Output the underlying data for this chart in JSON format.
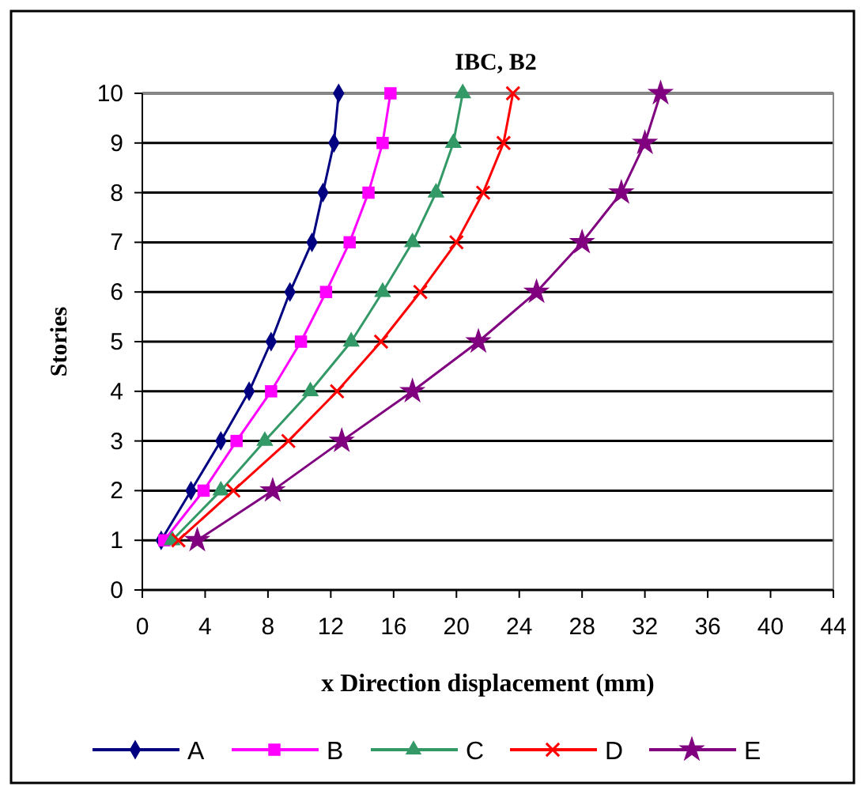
{
  "chart_data": {
    "type": "line",
    "title": "IBC, B2",
    "xlabel": "x Direction displacement (mm)",
    "ylabel": "Stories",
    "xlim": [
      0,
      44
    ],
    "xticks": [
      0,
      4,
      8,
      12,
      16,
      20,
      24,
      28,
      32,
      36,
      40,
      44
    ],
    "ylim": [
      0,
      10
    ],
    "yticks": [
      0,
      1,
      2,
      3,
      4,
      5,
      6,
      7,
      8,
      9,
      10
    ],
    "grid": "y",
    "legend": "bottom",
    "series": [
      {
        "name": "A",
        "color": "#000080",
        "marker": "diamond",
        "x": [
          1.2,
          3.1,
          5.0,
          6.8,
          8.2,
          9.4,
          10.8,
          11.5,
          12.2,
          12.5
        ],
        "values": [
          1,
          2,
          3,
          4,
          5,
          6,
          7,
          8,
          9,
          10
        ]
      },
      {
        "name": "B",
        "color": "#ff00ff",
        "marker": "square",
        "x": [
          1.4,
          3.9,
          6.0,
          8.2,
          10.1,
          11.7,
          13.2,
          14.4,
          15.3,
          15.8
        ],
        "values": [
          1,
          2,
          3,
          4,
          5,
          6,
          7,
          8,
          9,
          10
        ]
      },
      {
        "name": "C",
        "color": "#339966",
        "marker": "triangle",
        "x": [
          1.9,
          5.0,
          7.8,
          10.7,
          13.3,
          15.3,
          17.2,
          18.7,
          19.8,
          20.4
        ],
        "values": [
          1,
          2,
          3,
          4,
          5,
          6,
          7,
          8,
          9,
          10
        ]
      },
      {
        "name": "D",
        "color": "#ff0000",
        "marker": "cross",
        "x": [
          2.3,
          5.8,
          9.3,
          12.4,
          15.2,
          17.7,
          20.0,
          21.7,
          23.0,
          23.6
        ],
        "values": [
          1,
          2,
          3,
          4,
          5,
          6,
          7,
          8,
          9,
          10
        ]
      },
      {
        "name": "E",
        "color": "#800080",
        "marker": "star",
        "x": [
          3.5,
          8.3,
          12.7,
          17.2,
          21.4,
          25.1,
          28.0,
          30.5,
          32.0,
          33.0
        ],
        "values": [
          1,
          2,
          3,
          4,
          5,
          6,
          7,
          8,
          9,
          10
        ]
      }
    ]
  }
}
